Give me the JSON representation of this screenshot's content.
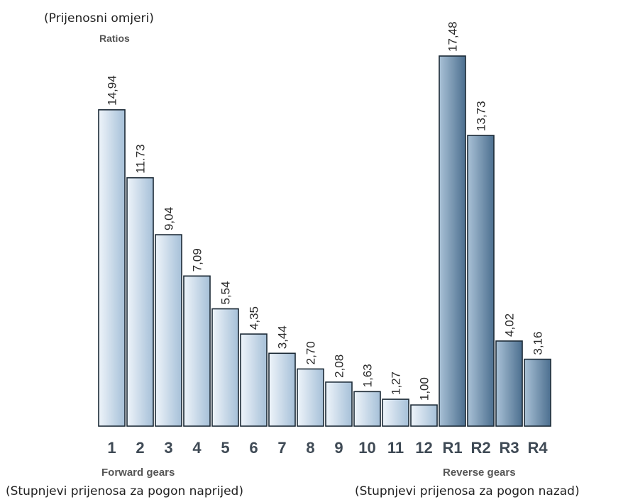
{
  "chart_data": {
    "type": "bar",
    "title": "",
    "ylabel_translation": "(Prijenosni omjeri)",
    "ylabel": "Ratios",
    "categories": [
      "1",
      "2",
      "3",
      "4",
      "5",
      "6",
      "7",
      "8",
      "9",
      "10",
      "11",
      "12",
      "R1",
      "R2",
      "R3",
      "R4"
    ],
    "value_labels": [
      "14,94",
      "11.73",
      "9,04",
      "7,09",
      "5,54",
      "4,35",
      "3,44",
      "2,70",
      "2,08",
      "1,63",
      "1,27",
      "1,00",
      "17,48",
      "13,73",
      "4,02",
      "3,16"
    ],
    "values": [
      14.94,
      11.73,
      9.04,
      7.09,
      5.54,
      4.35,
      3.44,
      2.7,
      2.08,
      1.63,
      1.27,
      1.0,
      17.48,
      13.73,
      4.02,
      3.16
    ],
    "ylim": [
      0,
      18
    ],
    "grid": false,
    "groups": {
      "forward": {
        "label": "Forward gears",
        "translation": "(Stupnjevi prijenosa za pogon naprijed)",
        "color_light": "#eef4fa",
        "color_dark": "#a6c0d8"
      },
      "reverse": {
        "label": "Reverse gears",
        "translation": "(Stupnjevi prijenosa za pogon nazad)",
        "color_light": "#a9c1d6",
        "color_dark": "#4c6f8f"
      }
    }
  }
}
